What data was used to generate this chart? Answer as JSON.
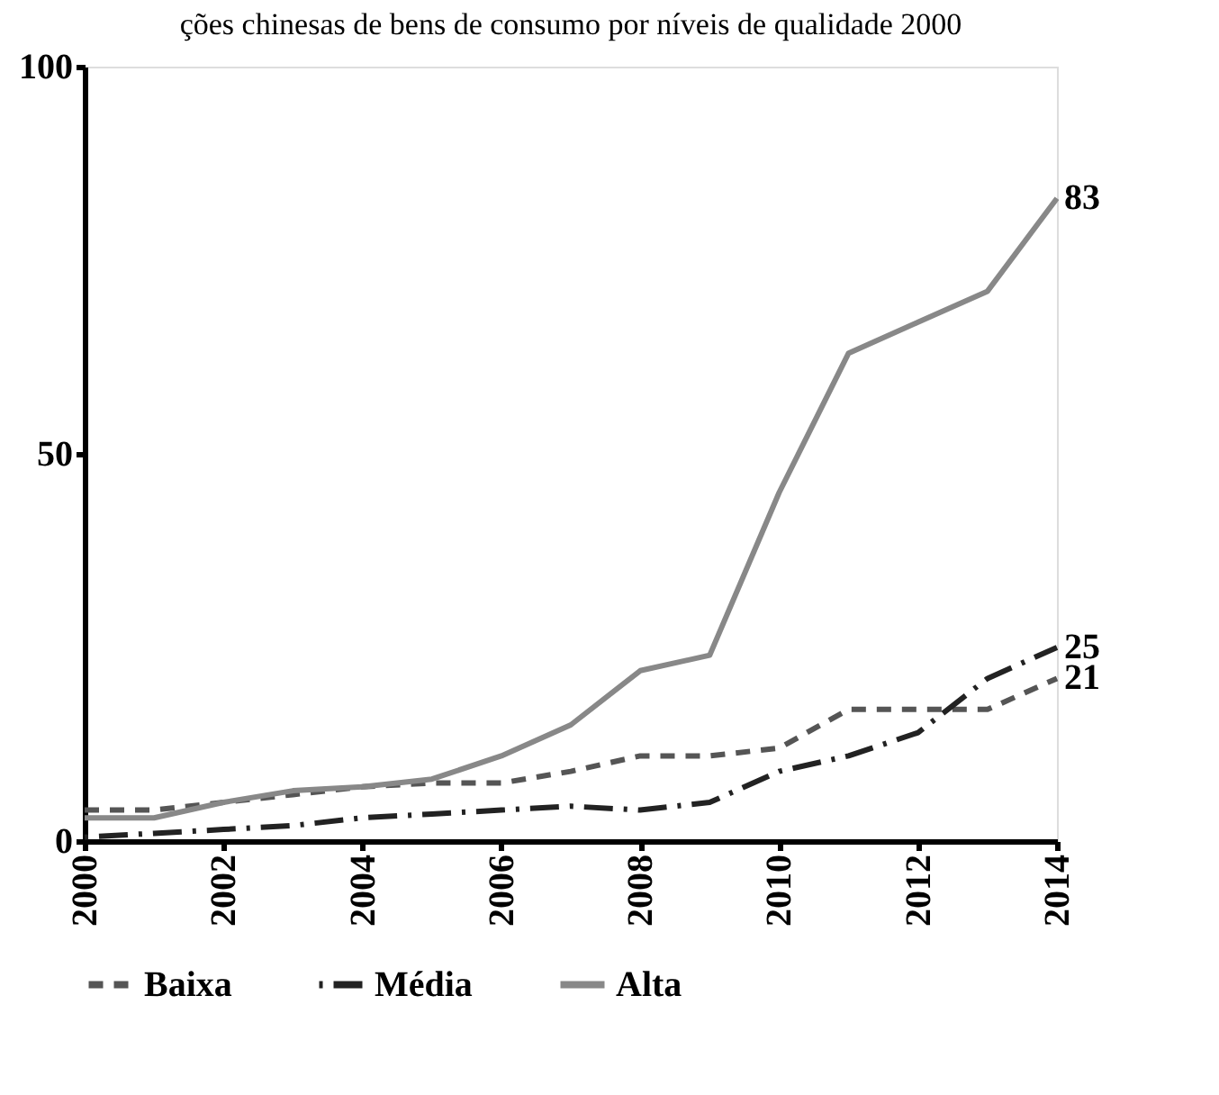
{
  "chart_data": {
    "type": "line",
    "title": "ções chinesas de bens de consumo por níveis de qualidade 2000",
    "x": [
      2000,
      2001,
      2002,
      2003,
      2004,
      2005,
      2006,
      2007,
      2008,
      2009,
      2010,
      2011,
      2012,
      2013,
      2014
    ],
    "xlim": [
      2000,
      2014
    ],
    "xticks": [
      2000,
      2002,
      2004,
      2006,
      2008,
      2010,
      2012,
      2014
    ],
    "ylim": [
      0,
      100
    ],
    "yticks": [
      0,
      50,
      100
    ],
    "grid": false,
    "legend": "bottom",
    "marker": "none",
    "series": [
      {
        "name": "Baixa",
        "color": "#555555",
        "line_style": "dashed",
        "values": [
          4,
          4,
          5,
          6,
          7,
          7.5,
          7.5,
          9,
          11,
          11,
          12,
          17,
          17,
          17,
          21
        ],
        "value_labels": [
          null,
          null,
          null,
          null,
          null,
          null,
          null,
          null,
          null,
          null,
          null,
          null,
          null,
          null,
          "21"
        ]
      },
      {
        "name": "Média",
        "color": "#222222",
        "line_style": "dashdot",
        "values": [
          0.5,
          1,
          1.5,
          2,
          3,
          3.5,
          4,
          4.5,
          4,
          5,
          9,
          11,
          14,
          21,
          25
        ],
        "value_labels": [
          null,
          null,
          null,
          null,
          null,
          null,
          null,
          null,
          null,
          null,
          null,
          null,
          null,
          null,
          "25"
        ]
      },
      {
        "name": "Alta",
        "color": "#888888",
        "line_style": "solid",
        "values": [
          3,
          3,
          5,
          6.5,
          7,
          8,
          11,
          15,
          22,
          24,
          45,
          63,
          67,
          71,
          83
        ],
        "value_labels": [
          null,
          null,
          null,
          null,
          null,
          null,
          null,
          null,
          null,
          null,
          null,
          null,
          null,
          null,
          "83"
        ]
      }
    ]
  }
}
